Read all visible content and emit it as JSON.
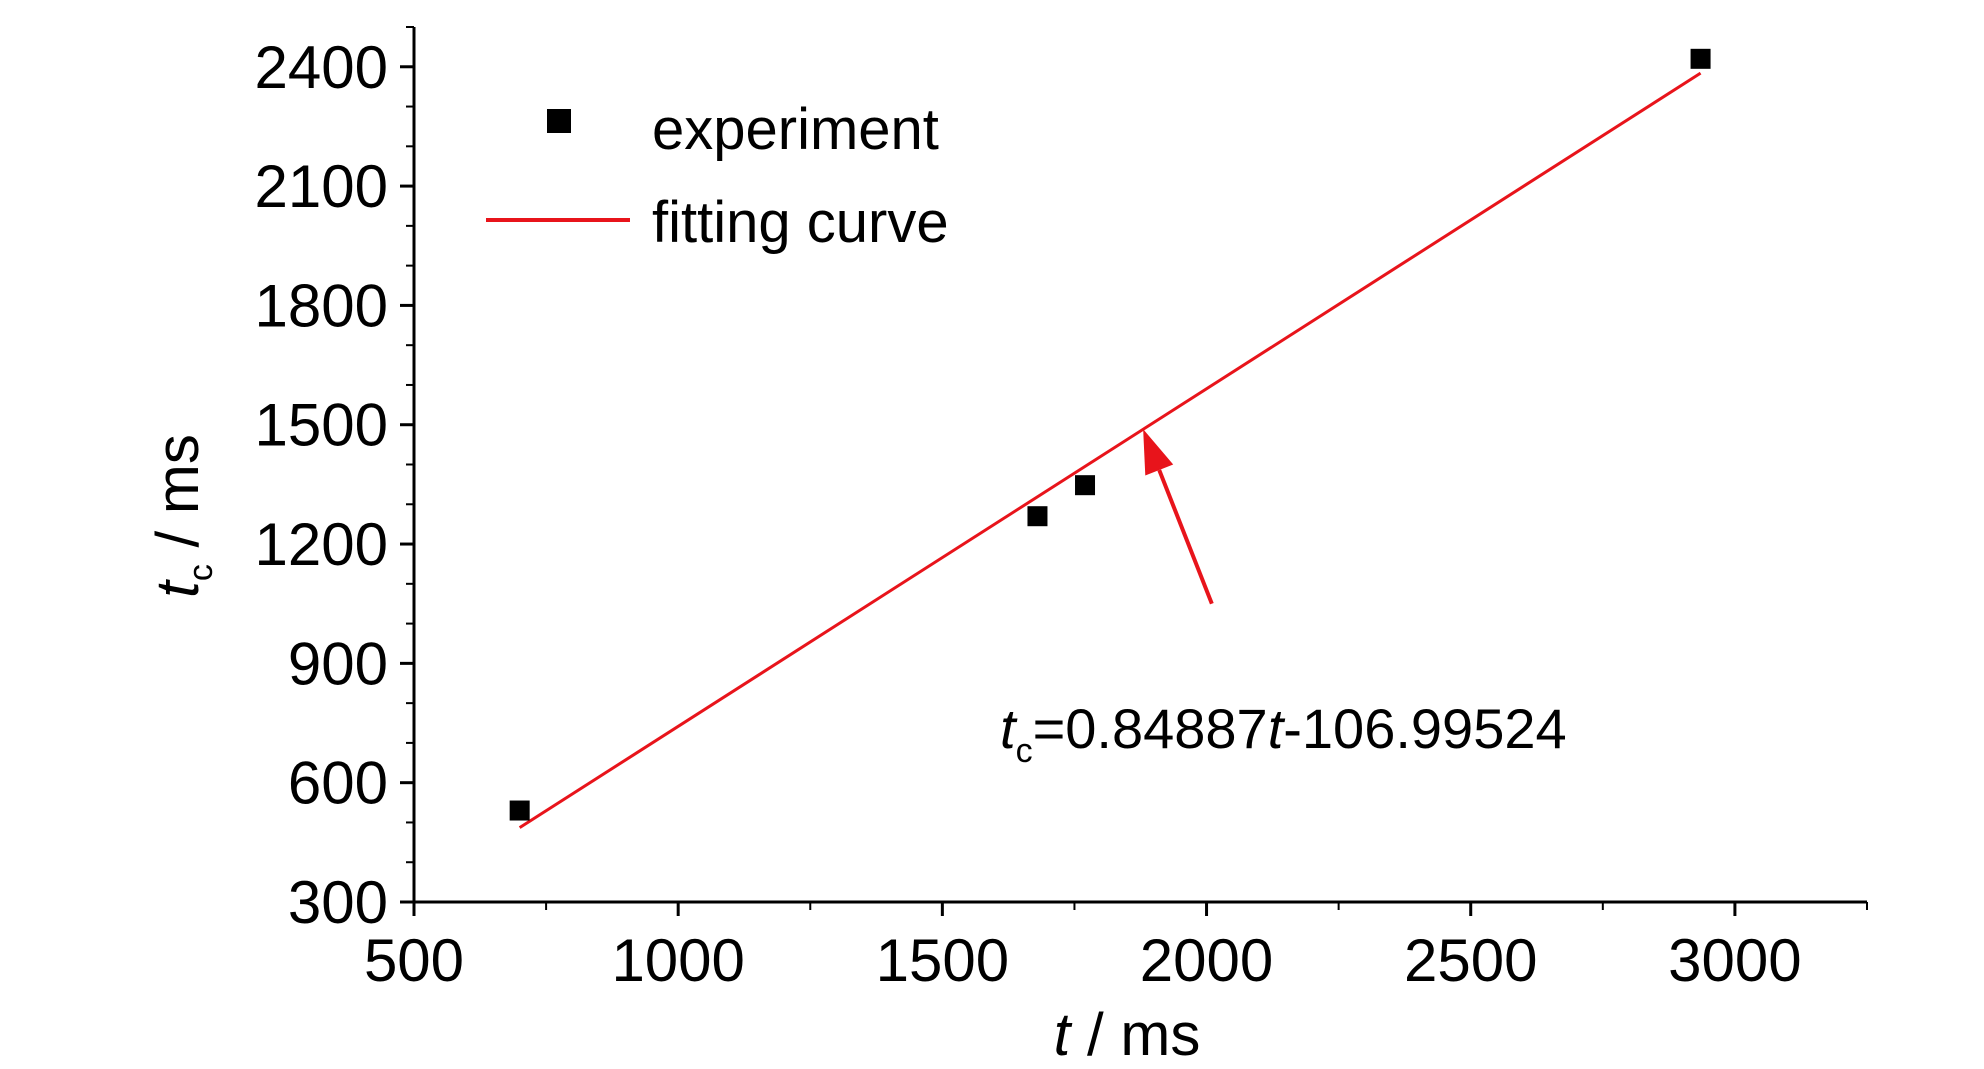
{
  "chart_data": {
    "type": "scatter",
    "title": "",
    "xlabel": {
      "var": "t",
      "unit": " / ms"
    },
    "ylabel": {
      "var": "t",
      "sub": "c",
      "unit": " / ms"
    },
    "xlim": [
      500,
      3250
    ],
    "ylim": [
      300,
      2500
    ],
    "x_ticks": [
      500,
      1000,
      1500,
      2000,
      2500,
      3000
    ],
    "y_ticks": [
      300,
      600,
      900,
      1200,
      1500,
      1800,
      2100,
      2400
    ],
    "x_tick_labels": [
      "500",
      "1000",
      "1500",
      "2000",
      "2500",
      "3000"
    ],
    "y_tick_labels": [
      "300",
      "600",
      "900",
      "1200",
      "1500",
      "1800",
      "2100",
      "2400"
    ],
    "series": [
      {
        "name": "experiment",
        "kind": "scatter",
        "marker": "square",
        "color": "#000000",
        "x": [
          700,
          1680,
          1770,
          2935
        ],
        "y": [
          530,
          1270,
          1348,
          2420
        ]
      },
      {
        "name": "fitting curve",
        "kind": "line",
        "color": "#e8141b",
        "x": [
          700,
          2935
        ],
        "y": [
          487,
          2384
        ]
      }
    ],
    "annotation": {
      "color": "#e8141b",
      "point_to": [
        1880,
        1489
      ],
      "from": [
        2010,
        1050
      ],
      "text_parts": [
        "t",
        "c",
        "=0.84887",
        "t",
        "-106.99524"
      ]
    },
    "legend": {
      "position": "top-left"
    },
    "grid": false
  }
}
